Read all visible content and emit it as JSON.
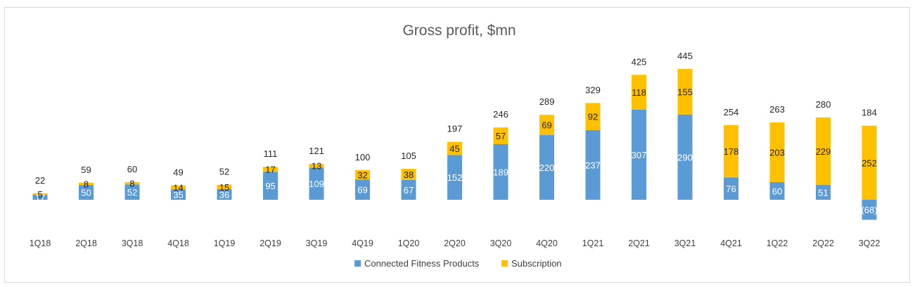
{
  "chart_data": {
    "type": "bar",
    "stacked": true,
    "title": "Gross profit, $mn",
    "categories": [
      "1Q18",
      "2Q18",
      "3Q18",
      "4Q18",
      "1Q19",
      "2Q19",
      "3Q19",
      "4Q19",
      "1Q20",
      "2Q20",
      "3Q20",
      "4Q20",
      "1Q21",
      "2Q21",
      "3Q21",
      "4Q21",
      "1Q22",
      "2Q22",
      "3Q22"
    ],
    "series": [
      {
        "name": "Connected Fitness Products",
        "color": "#5b9bd5",
        "values": [
          17,
          50,
          52,
          35,
          36,
          95,
          109,
          69,
          67,
          152,
          189,
          220,
          237,
          307,
          290,
          76,
          60,
          51,
          -68
        ],
        "labels": [
          "17",
          "50",
          "52",
          "35",
          "36",
          "95",
          "109",
          "69",
          "67",
          "152",
          "189",
          "220",
          "237",
          "307",
          "290",
          "76",
          "60",
          "51",
          "(68)"
        ]
      },
      {
        "name": "Subscription",
        "color": "#ffc000",
        "values": [
          5,
          8,
          8,
          14,
          15,
          17,
          13,
          32,
          38,
          45,
          57,
          69,
          92,
          118,
          155,
          178,
          203,
          229,
          252
        ],
        "labels": [
          "5",
          "8",
          "8",
          "14",
          "15",
          "17",
          "13",
          "32",
          "38",
          "45",
          "57",
          "69",
          "92",
          "118",
          "155",
          "178",
          "203",
          "229",
          "252"
        ]
      }
    ],
    "totals": [
      "22",
      "59",
      "60",
      "49",
      "52",
      "111",
      "121",
      "100",
      "105",
      "197",
      "246",
      "289",
      "329",
      "425",
      "445",
      "254",
      "263",
      "280",
      "184"
    ],
    "xlabel": "",
    "ylabel": "",
    "ylim": [
      -70,
      450
    ],
    "grid": false,
    "legend": "bottom"
  }
}
